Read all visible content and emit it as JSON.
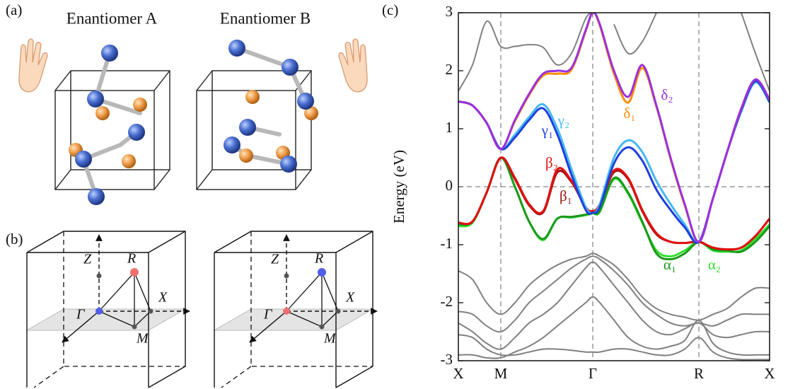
{
  "figure": {
    "panel_labels": [
      "(a)",
      "(b)",
      "(c)"
    ],
    "enantiomer_titles": [
      "Enantiomer A",
      "Enantiomer B"
    ],
    "bz_points": [
      [
        "Z",
        "R",
        "Γ",
        "X",
        "M"
      ],
      [
        "Z",
        "R",
        "Γ",
        "X",
        "M"
      ]
    ]
  },
  "chart_data": {
    "type": "line",
    "y_label": "Energy (eV)",
    "x": [
      0,
      2,
      4,
      6,
      8,
      10,
      12,
      14,
      16,
      18,
      19,
      20,
      22,
      24,
      26,
      28,
      30,
      32,
      34,
      36,
      38,
      40,
      42,
      44
    ],
    "xlim": [
      0,
      44
    ],
    "xticks": [
      {
        "value": 0,
        "label": "X"
      },
      {
        "value": 6,
        "label": "M"
      },
      {
        "value": 19,
        "label": "Γ"
      },
      {
        "value": 34,
        "label": "R"
      },
      {
        "value": 44,
        "label": "X"
      }
    ],
    "ylim": [
      -3,
      3
    ],
    "yticks": [
      -3,
      -2,
      -1,
      0,
      1,
      2,
      3
    ],
    "series": [
      {
        "color": "#808080",
        "values": [
          1.65,
          2.1,
          2.85,
          2.42,
          2.42,
          2.45,
          2.4,
          2.1,
          2.3,
          2.9,
          3.0,
          null,
          2.8,
          2.3,
          2.5,
          3.0,
          null,
          null,
          null,
          null,
          null,
          3.0,
          2.3,
          1.65
        ]
      },
      {
        "color": "#808080",
        "values": [
          -1.45,
          -1.6,
          -2.0,
          -2.2,
          -2.0,
          -1.7,
          -1.5,
          -1.35,
          -1.25,
          -1.2,
          -1.15,
          -1.2,
          -1.35,
          -1.6,
          -1.9,
          -2.1,
          -2.2,
          -2.25,
          -2.3,
          -2.2,
          -2.1,
          -1.9,
          -1.75,
          -1.75
        ]
      },
      {
        "color": "#808080",
        "values": [
          -2.15,
          -2.2,
          -2.4,
          -2.5,
          -2.3,
          -2.0,
          -1.8,
          -1.6,
          -1.4,
          -1.25,
          -1.2,
          -1.25,
          -1.45,
          -1.7,
          -2.0,
          -2.2,
          -2.35,
          -2.4,
          -2.35,
          -2.4,
          -2.3,
          -2.2,
          -2.2,
          -2.2
        ]
      },
      {
        "color": "#808080",
        "values": [
          -2.35,
          -2.5,
          -2.7,
          -2.8,
          -2.6,
          -2.35,
          -2.2,
          -2.0,
          -1.7,
          -1.4,
          -1.3,
          -1.4,
          -1.7,
          -2.0,
          -2.3,
          -2.5,
          -2.55,
          -2.45,
          -2.35,
          -2.55,
          -2.6,
          -2.55,
          -2.5,
          -2.5
        ]
      },
      {
        "color": "#808080",
        "values": [
          -2.9,
          -2.9,
          -2.95,
          -2.95,
          -2.85,
          -2.75,
          -2.6,
          -2.4,
          -2.2,
          -2.0,
          -1.9,
          -2.0,
          -2.3,
          -2.6,
          -2.75,
          -2.8,
          -2.75,
          -2.65,
          -2.3,
          -2.7,
          -2.85,
          -2.9,
          -2.9,
          -2.9
        ]
      },
      {
        "color": "#808080",
        "values": [
          -2.55,
          -2.6,
          -2.8,
          -2.9,
          -2.9,
          -2.85,
          -2.8,
          -2.8,
          -2.82,
          -2.85,
          -2.85,
          -2.85,
          -2.8,
          -2.8,
          -2.85,
          -2.9,
          -2.9,
          -2.8,
          -2.6,
          -2.85,
          -2.95,
          -2.98,
          -2.98,
          -2.98
        ]
      },
      {
        "name": "α₂",
        "color": "#33dd33",
        "values": [
          -0.68,
          -0.62,
          -0.1,
          0.5,
          0.0,
          -0.6,
          -0.92,
          -0.55,
          -0.53,
          -0.49,
          -0.46,
          -0.43,
          0.13,
          -0.12,
          -0.62,
          -1.1,
          -1.2,
          -1.1,
          -0.95,
          -1.1,
          -1.12,
          -1.1,
          -0.9,
          -0.65
        ]
      },
      {
        "name": "α₁",
        "color": "#1a9a1a",
        "values": [
          -0.65,
          -0.6,
          -0.1,
          0.5,
          0.0,
          -0.6,
          -0.9,
          -0.55,
          -0.52,
          -0.48,
          -0.45,
          -0.42,
          0.15,
          -0.1,
          -0.6,
          -1.15,
          -1.25,
          -1.15,
          -0.95,
          -1.08,
          -1.1,
          -1.12,
          -0.95,
          -0.68
        ]
      },
      {
        "name": "β₁",
        "color": "#a01010",
        "values": [
          -0.62,
          -0.6,
          -0.1,
          0.5,
          0.13,
          -0.32,
          -0.44,
          0.25,
          0.08,
          -0.36,
          -0.42,
          -0.31,
          0.25,
          0.13,
          -0.42,
          -0.82,
          -0.95,
          -0.97,
          -0.95,
          -1.05,
          -1.08,
          -1.05,
          -0.85,
          -0.55
        ]
      },
      {
        "name": "β₂",
        "color": "#e01010",
        "values": [
          -0.62,
          -0.6,
          -0.1,
          0.5,
          0.15,
          -0.3,
          -0.42,
          0.3,
          0.1,
          -0.35,
          -0.42,
          -0.3,
          0.28,
          0.15,
          -0.4,
          -0.8,
          -0.95,
          -0.97,
          -0.95,
          -1.05,
          -1.08,
          -1.05,
          -0.85,
          -0.55
        ]
      },
      {
        "name": "γ₂",
        "color": "#45b8f0",
        "values": [
          1.47,
          1.4,
          1.1,
          0.65,
          0.9,
          1.2,
          1.42,
          1.0,
          0.3,
          -0.35,
          -0.45,
          -0.3,
          0.5,
          0.8,
          0.6,
          0.1,
          -0.3,
          -0.65,
          -0.95,
          -0.2,
          0.6,
          1.3,
          1.8,
          1.45
        ]
      },
      {
        "name": "γ₁",
        "color": "#1f3fdc",
        "values": [
          1.47,
          1.4,
          1.1,
          0.65,
          0.85,
          1.15,
          1.35,
          0.9,
          0.2,
          -0.4,
          -0.45,
          -0.35,
          0.4,
          0.68,
          0.45,
          -0.05,
          -0.4,
          -0.7,
          -0.95,
          -0.2,
          0.6,
          1.32,
          1.82,
          1.47
        ]
      },
      {
        "name": "δ₁",
        "color": "#ff8c00",
        "values": [
          1.47,
          1.4,
          1.1,
          0.65,
          1.13,
          1.58,
          1.92,
          1.95,
          2.02,
          2.68,
          3.0,
          2.78,
          1.95,
          1.45,
          2.05,
          1.38,
          0.48,
          -0.32,
          -0.95,
          -0.2,
          0.6,
          1.35,
          1.85,
          1.5
        ]
      },
      {
        "name": "δ₂",
        "color": "#9b30e0",
        "values": [
          1.47,
          1.4,
          1.1,
          0.65,
          1.15,
          1.6,
          1.95,
          2.0,
          2.05,
          2.7,
          3.0,
          2.8,
          2.0,
          1.55,
          2.1,
          1.4,
          0.5,
          -0.3,
          -0.95,
          -0.2,
          0.6,
          1.35,
          1.85,
          1.5
        ]
      }
    ]
  }
}
